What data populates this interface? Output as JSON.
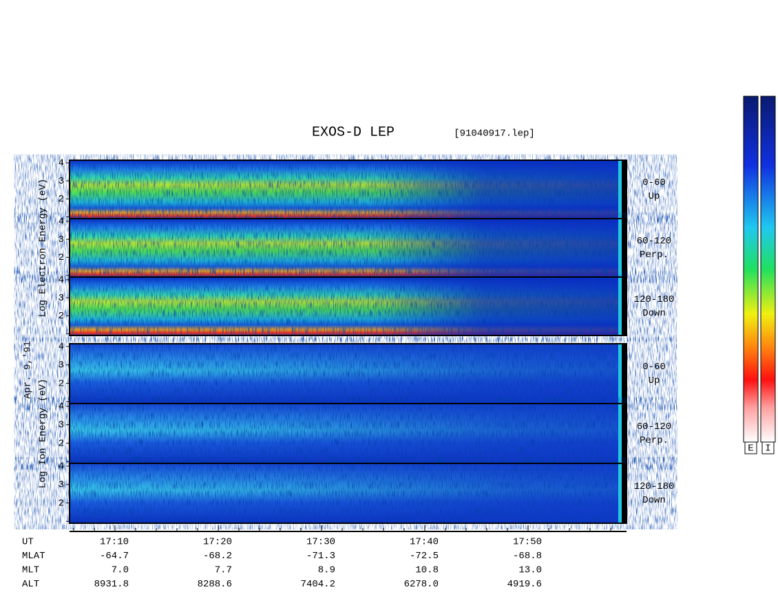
{
  "chart_data": {
    "type": "spectrogram",
    "title": "EXOS-D LEP",
    "file_label": "[91040917.lep]",
    "date_label": "Apr. 9,'91",
    "groups": [
      {
        "name": "electron",
        "axis_label": "Log  Electron  Energy (eV)",
        "panels": [
          {
            "range": "0-60",
            "direction": "Up"
          },
          {
            "range": "60-120",
            "direction": "Perp."
          },
          {
            "range": "120-180",
            "direction": "Down"
          }
        ]
      },
      {
        "name": "ion",
        "axis_label": "Log  Ion  Energy (eV)",
        "panels": [
          {
            "range": "0-60",
            "direction": "Up"
          },
          {
            "range": "60-120",
            "direction": "Perp."
          },
          {
            "range": "120-180",
            "direction": "Down"
          }
        ]
      }
    ],
    "ylim": [
      0.9,
      4.15
    ],
    "yticks": [
      2,
      3,
      4
    ],
    "minor_yticks": [
      1
    ],
    "time_rows": [
      {
        "name": "UT",
        "values": [
          "17:10",
          "17:20",
          "17:30",
          "17:40",
          "17:50"
        ]
      },
      {
        "name": "MLAT",
        "values": [
          "-64.7",
          "-68.2",
          "-71.3",
          "-72.5",
          "-68.8"
        ]
      },
      {
        "name": "MLT",
        "values": [
          "7.0",
          "7.7",
          "8.9",
          "10.8",
          "13.0"
        ]
      },
      {
        "name": "ALT",
        "values": [
          "8931.8",
          "8288.6",
          "7404.2",
          "6278.0",
          "4919.6"
        ]
      }
    ],
    "colorbar_labels": [
      "E",
      "I"
    ]
  }
}
